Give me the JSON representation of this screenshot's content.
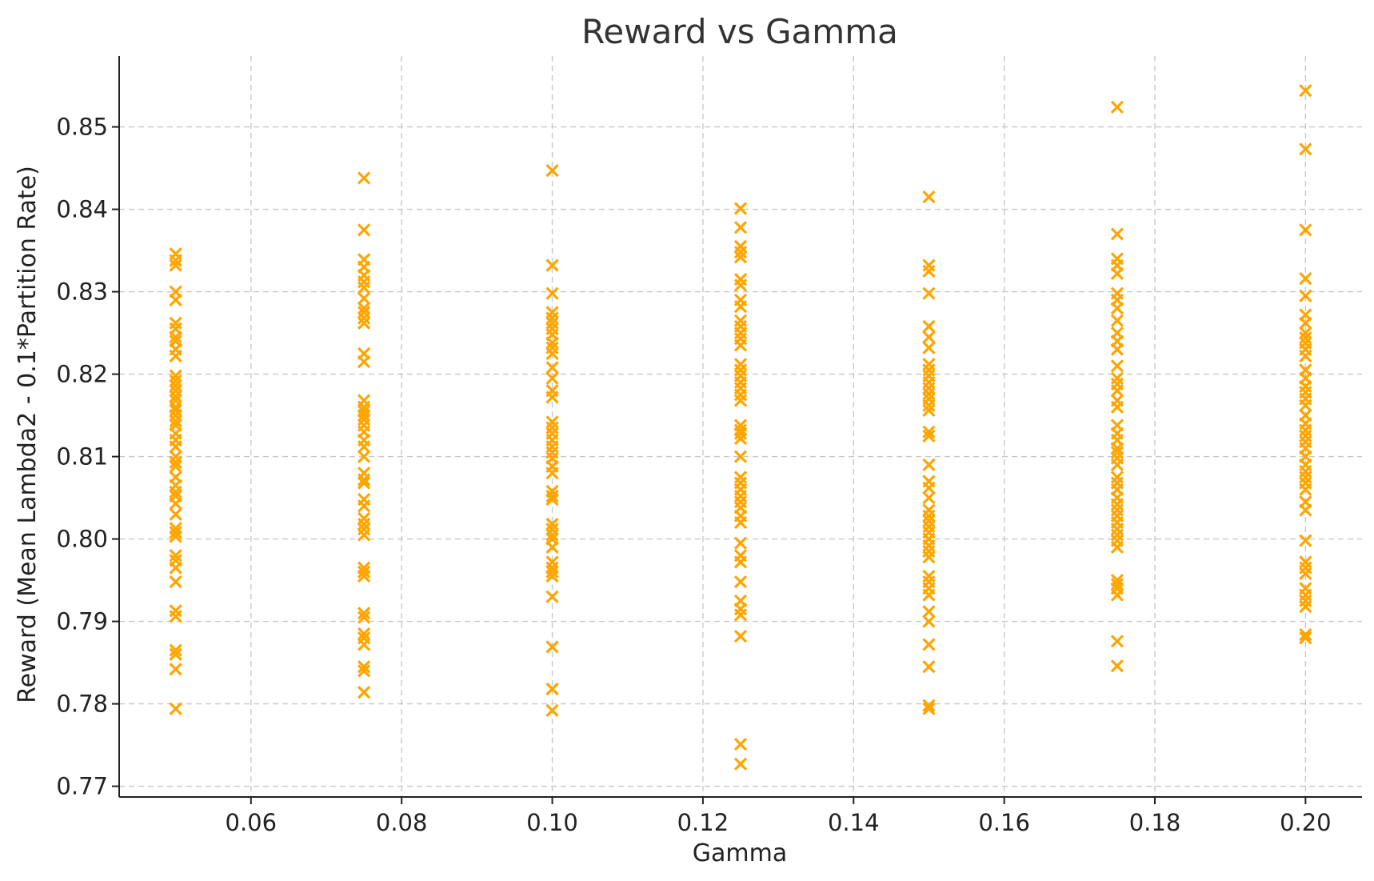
{
  "chart_data": {
    "type": "scatter",
    "title": "Reward vs Gamma",
    "xlabel": "Gamma",
    "ylabel": "Reward (Mean Lambda2 - 0.1*Partition Rate)",
    "xlim": [
      0.0425,
      0.2075
    ],
    "ylim": [
      0.7687,
      0.8586
    ],
    "x_ticks": [
      0.06,
      0.08,
      0.1,
      0.12,
      0.14,
      0.16,
      0.18,
      0.2
    ],
    "x_tick_labels": [
      "0.06",
      "0.08",
      "0.10",
      "0.12",
      "0.14",
      "0.16",
      "0.18",
      "0.20"
    ],
    "y_ticks": [
      0.77,
      0.78,
      0.79,
      0.8,
      0.81,
      0.82,
      0.83,
      0.84,
      0.85
    ],
    "y_tick_labels": [
      "0.77",
      "0.78",
      "0.79",
      "0.80",
      "0.81",
      "0.82",
      "0.83",
      "0.84",
      "0.85"
    ],
    "grid": true,
    "marker": "x",
    "color": "#FFA500",
    "series": [
      {
        "points": [
          [
            0.05,
            0.8346
          ],
          [
            0.05,
            0.8338
          ],
          [
            0.05,
            0.8332
          ],
          [
            0.05,
            0.83
          ],
          [
            0.05,
            0.829
          ],
          [
            0.05,
            0.8262
          ],
          [
            0.05,
            0.8255
          ],
          [
            0.05,
            0.8245
          ],
          [
            0.05,
            0.824
          ],
          [
            0.05,
            0.823
          ],
          [
            0.05,
            0.8222
          ],
          [
            0.05,
            0.8198
          ],
          [
            0.05,
            0.8192
          ],
          [
            0.05,
            0.8186
          ],
          [
            0.05,
            0.818
          ],
          [
            0.05,
            0.8173
          ],
          [
            0.05,
            0.8168
          ],
          [
            0.05,
            0.816
          ],
          [
            0.05,
            0.8156
          ],
          [
            0.05,
            0.815
          ],
          [
            0.05,
            0.8143
          ],
          [
            0.05,
            0.8138
          ],
          [
            0.05,
            0.8128
          ],
          [
            0.05,
            0.812
          ],
          [
            0.05,
            0.8112
          ],
          [
            0.05,
            0.81
          ],
          [
            0.05,
            0.8093
          ],
          [
            0.05,
            0.8088
          ],
          [
            0.05,
            0.8075
          ],
          [
            0.05,
            0.8065
          ],
          [
            0.05,
            0.8057
          ],
          [
            0.05,
            0.8052
          ],
          [
            0.05,
            0.8043
          ],
          [
            0.05,
            0.803
          ],
          [
            0.05,
            0.8013
          ],
          [
            0.05,
            0.8008
          ],
          [
            0.05,
            0.8003
          ],
          [
            0.05,
            0.798
          ],
          [
            0.05,
            0.7974
          ],
          [
            0.05,
            0.7965
          ],
          [
            0.05,
            0.7948
          ],
          [
            0.05,
            0.7913
          ],
          [
            0.05,
            0.7906
          ],
          [
            0.05,
            0.7865
          ],
          [
            0.05,
            0.786
          ],
          [
            0.05,
            0.7842
          ],
          [
            0.05,
            0.7794
          ],
          [
            0.075,
            0.8438
          ],
          [
            0.075,
            0.8375
          ],
          [
            0.075,
            0.8339
          ],
          [
            0.075,
            0.833
          ],
          [
            0.075,
            0.832
          ],
          [
            0.075,
            0.8312
          ],
          [
            0.075,
            0.8305
          ],
          [
            0.075,
            0.8292
          ],
          [
            0.075,
            0.828
          ],
          [
            0.075,
            0.8275
          ],
          [
            0.075,
            0.8268
          ],
          [
            0.075,
            0.8262
          ],
          [
            0.075,
            0.8225
          ],
          [
            0.075,
            0.8215
          ],
          [
            0.075,
            0.8168
          ],
          [
            0.075,
            0.816
          ],
          [
            0.075,
            0.8155
          ],
          [
            0.075,
            0.815
          ],
          [
            0.075,
            0.8145
          ],
          [
            0.075,
            0.8138
          ],
          [
            0.075,
            0.813
          ],
          [
            0.075,
            0.812
          ],
          [
            0.075,
            0.8112
          ],
          [
            0.075,
            0.81
          ],
          [
            0.075,
            0.808
          ],
          [
            0.075,
            0.8072
          ],
          [
            0.075,
            0.8068
          ],
          [
            0.075,
            0.8048
          ],
          [
            0.075,
            0.804
          ],
          [
            0.075,
            0.8025
          ],
          [
            0.075,
            0.8018
          ],
          [
            0.075,
            0.8012
          ],
          [
            0.075,
            0.8005
          ],
          [
            0.075,
            0.7965
          ],
          [
            0.075,
            0.796
          ],
          [
            0.075,
            0.7955
          ],
          [
            0.075,
            0.791
          ],
          [
            0.075,
            0.7905
          ],
          [
            0.075,
            0.7885
          ],
          [
            0.075,
            0.788
          ],
          [
            0.075,
            0.7872
          ],
          [
            0.075,
            0.7845
          ],
          [
            0.075,
            0.784
          ],
          [
            0.075,
            0.7814
          ],
          [
            0.1,
            0.8447
          ],
          [
            0.1,
            0.8332
          ],
          [
            0.1,
            0.8298
          ],
          [
            0.1,
            0.8275
          ],
          [
            0.1,
            0.8268
          ],
          [
            0.1,
            0.8262
          ],
          [
            0.1,
            0.8255
          ],
          [
            0.1,
            0.8248
          ],
          [
            0.1,
            0.8238
          ],
          [
            0.1,
            0.8232
          ],
          [
            0.1,
            0.8225
          ],
          [
            0.1,
            0.8208
          ],
          [
            0.1,
            0.8195
          ],
          [
            0.1,
            0.818
          ],
          [
            0.1,
            0.8172
          ],
          [
            0.1,
            0.8142
          ],
          [
            0.1,
            0.8135
          ],
          [
            0.1,
            0.8128
          ],
          [
            0.1,
            0.812
          ],
          [
            0.1,
            0.8112
          ],
          [
            0.1,
            0.8105
          ],
          [
            0.1,
            0.8098
          ],
          [
            0.1,
            0.8088
          ],
          [
            0.1,
            0.808
          ],
          [
            0.1,
            0.8058
          ],
          [
            0.1,
            0.8052
          ],
          [
            0.1,
            0.8048
          ],
          [
            0.1,
            0.8018
          ],
          [
            0.1,
            0.8012
          ],
          [
            0.1,
            0.8005
          ],
          [
            0.1,
            0.8
          ],
          [
            0.1,
            0.799
          ],
          [
            0.1,
            0.7972
          ],
          [
            0.1,
            0.7965
          ],
          [
            0.1,
            0.796
          ],
          [
            0.1,
            0.7955
          ],
          [
            0.1,
            0.793
          ],
          [
            0.1,
            0.7869
          ],
          [
            0.1,
            0.7818
          ],
          [
            0.1,
            0.7792
          ],
          [
            0.125,
            0.8401
          ],
          [
            0.125,
            0.8378
          ],
          [
            0.125,
            0.8355
          ],
          [
            0.125,
            0.8348
          ],
          [
            0.125,
            0.8342
          ],
          [
            0.125,
            0.8315
          ],
          [
            0.125,
            0.8308
          ],
          [
            0.125,
            0.829
          ],
          [
            0.125,
            0.8282
          ],
          [
            0.125,
            0.8265
          ],
          [
            0.125,
            0.8258
          ],
          [
            0.125,
            0.825
          ],
          [
            0.125,
            0.8243
          ],
          [
            0.125,
            0.8235
          ],
          [
            0.125,
            0.8212
          ],
          [
            0.125,
            0.8205
          ],
          [
            0.125,
            0.8198
          ],
          [
            0.125,
            0.819
          ],
          [
            0.125,
            0.8183
          ],
          [
            0.125,
            0.8175
          ],
          [
            0.125,
            0.8168
          ],
          [
            0.125,
            0.8138
          ],
          [
            0.125,
            0.8132
          ],
          [
            0.125,
            0.8128
          ],
          [
            0.125,
            0.8122
          ],
          [
            0.125,
            0.81
          ],
          [
            0.125,
            0.8075
          ],
          [
            0.125,
            0.8068
          ],
          [
            0.125,
            0.806
          ],
          [
            0.125,
            0.8052
          ],
          [
            0.125,
            0.8045
          ],
          [
            0.125,
            0.8038
          ],
          [
            0.125,
            0.8028
          ],
          [
            0.125,
            0.802
          ],
          [
            0.125,
            0.7995
          ],
          [
            0.125,
            0.798
          ],
          [
            0.125,
            0.7972
          ],
          [
            0.125,
            0.7948
          ],
          [
            0.125,
            0.7925
          ],
          [
            0.125,
            0.7915
          ],
          [
            0.125,
            0.7908
          ],
          [
            0.125,
            0.7882
          ],
          [
            0.125,
            0.7751
          ],
          [
            0.125,
            0.7727
          ],
          [
            0.15,
            0.8415
          ],
          [
            0.15,
            0.8332
          ],
          [
            0.15,
            0.8325
          ],
          [
            0.15,
            0.8298
          ],
          [
            0.15,
            0.8258
          ],
          [
            0.15,
            0.8245
          ],
          [
            0.15,
            0.8232
          ],
          [
            0.15,
            0.8212
          ],
          [
            0.15,
            0.8205
          ],
          [
            0.15,
            0.8198
          ],
          [
            0.15,
            0.819
          ],
          [
            0.15,
            0.8183
          ],
          [
            0.15,
            0.8176
          ],
          [
            0.15,
            0.817
          ],
          [
            0.15,
            0.8162
          ],
          [
            0.15,
            0.8156
          ],
          [
            0.15,
            0.813
          ],
          [
            0.15,
            0.8125
          ],
          [
            0.15,
            0.809
          ],
          [
            0.15,
            0.807
          ],
          [
            0.15,
            0.8062
          ],
          [
            0.15,
            0.805
          ],
          [
            0.15,
            0.8035
          ],
          [
            0.15,
            0.8028
          ],
          [
            0.15,
            0.8022
          ],
          [
            0.15,
            0.8015
          ],
          [
            0.15,
            0.8008
          ],
          [
            0.15,
            0.8
          ],
          [
            0.15,
            0.7992
          ],
          [
            0.15,
            0.7985
          ],
          [
            0.15,
            0.7978
          ],
          [
            0.15,
            0.7955
          ],
          [
            0.15,
            0.7948
          ],
          [
            0.15,
            0.794
          ],
          [
            0.15,
            0.7932
          ],
          [
            0.15,
            0.7912
          ],
          [
            0.15,
            0.79
          ],
          [
            0.15,
            0.7872
          ],
          [
            0.15,
            0.7845
          ],
          [
            0.15,
            0.7798
          ],
          [
            0.15,
            0.7794
          ],
          [
            0.175,
            0.8524
          ],
          [
            0.175,
            0.837
          ],
          [
            0.175,
            0.834
          ],
          [
            0.175,
            0.8332
          ],
          [
            0.175,
            0.8322
          ],
          [
            0.175,
            0.8298
          ],
          [
            0.175,
            0.829
          ],
          [
            0.175,
            0.828
          ],
          [
            0.175,
            0.8265
          ],
          [
            0.175,
            0.825
          ],
          [
            0.175,
            0.824
          ],
          [
            0.175,
            0.823
          ],
          [
            0.175,
            0.821
          ],
          [
            0.175,
            0.8195
          ],
          [
            0.175,
            0.8188
          ],
          [
            0.175,
            0.818
          ],
          [
            0.175,
            0.8168
          ],
          [
            0.175,
            0.816
          ],
          [
            0.175,
            0.8138
          ],
          [
            0.175,
            0.8128
          ],
          [
            0.175,
            0.812
          ],
          [
            0.175,
            0.811
          ],
          [
            0.175,
            0.8105
          ],
          [
            0.175,
            0.8098
          ],
          [
            0.175,
            0.809
          ],
          [
            0.175,
            0.8075
          ],
          [
            0.175,
            0.8068
          ],
          [
            0.175,
            0.806
          ],
          [
            0.175,
            0.805
          ],
          [
            0.175,
            0.8042
          ],
          [
            0.175,
            0.8035
          ],
          [
            0.175,
            0.8028
          ],
          [
            0.175,
            0.802
          ],
          [
            0.175,
            0.8012
          ],
          [
            0.175,
            0.8005
          ],
          [
            0.175,
            0.7998
          ],
          [
            0.175,
            0.799
          ],
          [
            0.175,
            0.795
          ],
          [
            0.175,
            0.7945
          ],
          [
            0.175,
            0.794
          ],
          [
            0.175,
            0.7932
          ],
          [
            0.175,
            0.7876
          ],
          [
            0.175,
            0.7846
          ],
          [
            0.2,
            0.8544
          ],
          [
            0.2,
            0.8473
          ],
          [
            0.2,
            0.8375
          ],
          [
            0.2,
            0.8316
          ],
          [
            0.2,
            0.8295
          ],
          [
            0.2,
            0.8272
          ],
          [
            0.2,
            0.8262
          ],
          [
            0.2,
            0.825
          ],
          [
            0.2,
            0.8244
          ],
          [
            0.2,
            0.8238
          ],
          [
            0.2,
            0.823
          ],
          [
            0.2,
            0.8222
          ],
          [
            0.2,
            0.8205
          ],
          [
            0.2,
            0.8195
          ],
          [
            0.2,
            0.8185
          ],
          [
            0.2,
            0.8178
          ],
          [
            0.2,
            0.817
          ],
          [
            0.2,
            0.8162
          ],
          [
            0.2,
            0.815
          ],
          [
            0.2,
            0.814
          ],
          [
            0.2,
            0.8132
          ],
          [
            0.2,
            0.8125
          ],
          [
            0.2,
            0.8118
          ],
          [
            0.2,
            0.811
          ],
          [
            0.2,
            0.81
          ],
          [
            0.2,
            0.809
          ],
          [
            0.2,
            0.8082
          ],
          [
            0.2,
            0.8075
          ],
          [
            0.2,
            0.8068
          ],
          [
            0.2,
            0.806
          ],
          [
            0.2,
            0.8045
          ],
          [
            0.2,
            0.8035
          ],
          [
            0.2,
            0.7998
          ],
          [
            0.2,
            0.7972
          ],
          [
            0.2,
            0.7965
          ],
          [
            0.2,
            0.7958
          ],
          [
            0.2,
            0.794
          ],
          [
            0.2,
            0.7932
          ],
          [
            0.2,
            0.7925
          ],
          [
            0.2,
            0.7918
          ],
          [
            0.2,
            0.7884
          ],
          [
            0.2,
            0.788
          ]
        ]
      }
    ]
  }
}
